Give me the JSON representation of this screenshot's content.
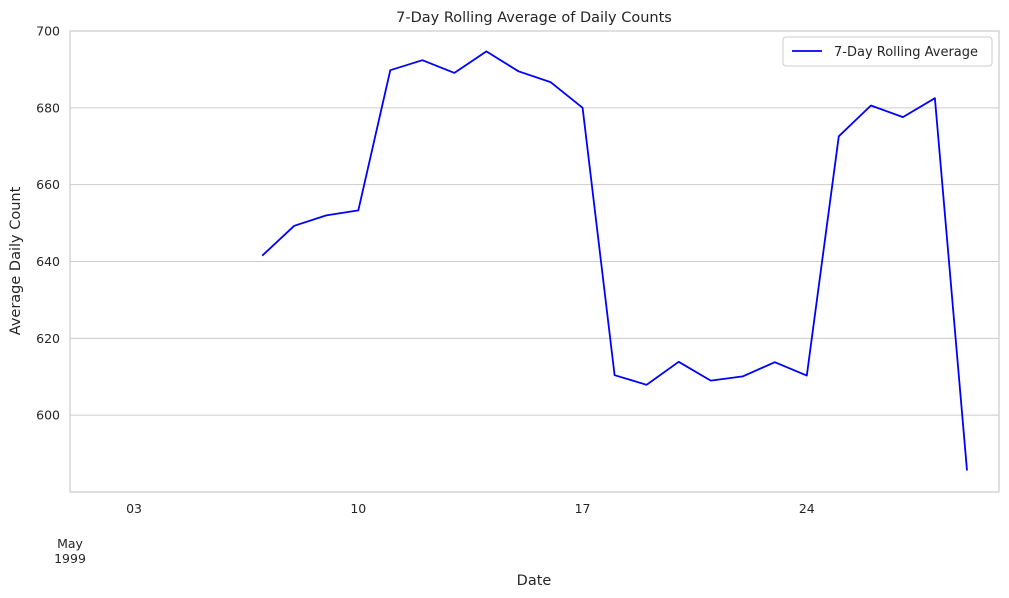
{
  "chart_data": {
    "type": "line",
    "title": "7-Day Rolling Average of Daily Counts",
    "xlabel": "Date",
    "ylabel": "Average Daily Count",
    "xlim": [
      "1999-05-01",
      "1999-05-30"
    ],
    "ylim": [
      580,
      700
    ],
    "y_ticks": [
      600,
      620,
      640,
      660,
      680,
      700
    ],
    "x_ticks": [
      {
        "date": "1999-05-03",
        "label": "03"
      },
      {
        "date": "1999-05-10",
        "label": "10"
      },
      {
        "date": "1999-05-17",
        "label": "17"
      },
      {
        "date": "1999-05-24",
        "label": "24"
      }
    ],
    "x_secondary_label": {
      "date": "1999-05-01",
      "month": "May",
      "year": "1999"
    },
    "grid": "y",
    "legend": {
      "position": "top-right"
    },
    "series": [
      {
        "name": "7-Day Rolling Average",
        "color": "#0000ff",
        "x": [
          "1999-05-07",
          "1999-05-08",
          "1999-05-09",
          "1999-05-10",
          "1999-05-11",
          "1999-05-12",
          "1999-05-13",
          "1999-05-14",
          "1999-05-15",
          "1999-05-16",
          "1999-05-17",
          "1999-05-18",
          "1999-05-19",
          "1999-05-20",
          "1999-05-21",
          "1999-05-22",
          "1999-05-23",
          "1999-05-24",
          "1999-05-25",
          "1999-05-26",
          "1999-05-27",
          "1999-05-28",
          "1999-05-29"
        ],
        "values": [
          641.5,
          649.3,
          652.0,
          653.3,
          689.8,
          692.4,
          689.1,
          694.7,
          689.5,
          686.7,
          680.0,
          610.4,
          607.9,
          613.9,
          609.0,
          610.1,
          613.8,
          610.3,
          672.6,
          680.6,
          677.6,
          682.5,
          585.6
        ]
      }
    ]
  }
}
